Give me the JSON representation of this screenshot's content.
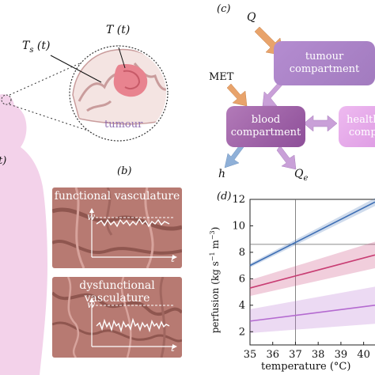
{
  "panel_a": {
    "label_T": "T (t)",
    "label_Ts": "T",
    "label_Ts_sub": "s",
    "label_Ts_arg": " (t)",
    "tumour_label": "tumour",
    "body_label_fragment": "t)",
    "colors": {
      "body": "#f3d2ea",
      "tumour": "#8f6fb0",
      "lesion": "#e8838f",
      "brain": "#f4e4e2"
    }
  },
  "panel_b": {
    "label": "(b)",
    "top_title": "functional vasculature",
    "bottom_title": "dysfunctional vasculature",
    "axis_y": "w",
    "axis_x": "t",
    "colors": {
      "photo": "#b77a72",
      "photo_dark": "#8f564f"
    }
  },
  "panel_c": {
    "label": "(c)",
    "nodes": {
      "tumour": "tumour\ncompartment",
      "blood": "blood\ncompartment",
      "healthy": "health\ncomp"
    },
    "inputs": {
      "Q": "Q",
      "MET": "MET",
      "h": "h",
      "Qe": "Q",
      "Qe_sub": "e"
    },
    "colors": {
      "tumour_node": "#b084c7",
      "blood_node": "#9a5fa4",
      "healthy_node": "#e3a6e8",
      "arrow_orange": "#e8a36b",
      "arrow_lilac": "#c9a0d8",
      "arrow_blue": "#8fb0d8"
    }
  },
  "panel_d": {
    "label": "(d)",
    "ylabel": "perfusion (kg s",
    "ylabel_exp1": "−1",
    "ylabel_mid": " m",
    "ylabel_exp2": "−3",
    "ylabel_end": ")",
    "xlabel": "temperature (°C)",
    "colors": {
      "blue": "#3e6fb5",
      "crimson": "#c83d73",
      "violet": "#b46ad0"
    }
  },
  "chart_data": {
    "type": "line",
    "title": "",
    "xlabel": "temperature (°C)",
    "ylabel": "perfusion (kg s−1 m−3)",
    "xlim": [
      35,
      40.5
    ],
    "ylim": [
      1,
      12
    ],
    "xticks": [
      35,
      36,
      37,
      38,
      39,
      40
    ],
    "yticks": [
      2,
      4,
      6,
      8,
      10,
      12
    ],
    "xtick_labels": [
      "35",
      "36",
      "37",
      "38",
      "39",
      "40"
    ],
    "ytick_labels": [
      "2",
      "4",
      "6",
      "8",
      "10",
      "12"
    ],
    "reference_lines": {
      "x": 37,
      "y": 8.6
    },
    "grid": false,
    "series": [
      {
        "color": "#3e6fb5",
        "x": [
          35,
          40.5
        ],
        "y": [
          7.0,
          11.8
        ],
        "band_halfwidth": [
          0.15,
          0.3
        ]
      },
      {
        "color": "#c83d73",
        "x": [
          35,
          40.5
        ],
        "y": [
          5.3,
          7.8
        ],
        "band_halfwidth": [
          0.6,
          1.0
        ]
      },
      {
        "color": "#b46ad0",
        "x": [
          35,
          40.5
        ],
        "y": [
          2.8,
          4.0
        ],
        "band_halfwidth": [
          0.9,
          1.4
        ]
      }
    ]
  }
}
